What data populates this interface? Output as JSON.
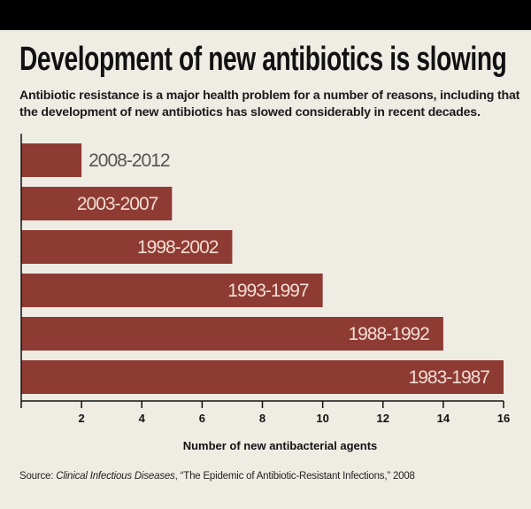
{
  "colors": {
    "bar": "#8e3b34",
    "label_on_bar": "#f2ddd3",
    "label_off_bar": "#555555",
    "background": "#efece4"
  },
  "header": {
    "title": "Development of new antibiotics is slowing",
    "subtitle": "Antibiotic resistance is a major health problem for a number of reasons, including that the development of new antibiotics has slowed considerably in recent decades."
  },
  "source": {
    "prefix": "Source: ",
    "publication": "Clinical Infectious Diseases",
    "article": ", “The Epidemic of Antibiotic-Resistant Infections,” 2008"
  },
  "chart_data": {
    "type": "bar",
    "orientation": "horizontal",
    "categories": [
      "2008-2012",
      "2003-2007",
      "1998-2002",
      "1993-1997",
      "1988-1992",
      "1983-1987"
    ],
    "values": [
      2,
      5,
      7,
      10,
      14,
      16
    ],
    "xlabel": "Number of new antibacterial agents",
    "ylabel": "",
    "xlim": [
      0,
      16
    ],
    "xticks": [
      "2",
      "4",
      "6",
      "8",
      "10",
      "12",
      "14",
      "16"
    ],
    "grid": false,
    "title": "Development of new antibiotics is slowing"
  }
}
